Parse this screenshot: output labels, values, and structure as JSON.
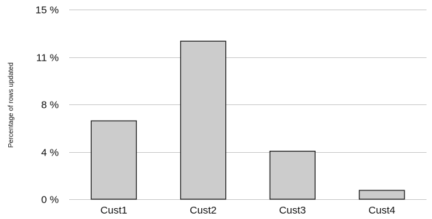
{
  "chart_data": {
    "type": "bar",
    "title": "",
    "xlabel": "",
    "ylabel": "Percentage of rows updated",
    "categories": [
      "Cust1",
      "Cust2",
      "Cust3",
      "Cust4"
    ],
    "values": [
      6.2,
      12.5,
      3.8,
      0.7
    ],
    "ylim": [
      0,
      15
    ],
    "y_ticks": [
      0,
      3.75,
      7.5,
      11.25,
      15
    ],
    "y_tick_labels": [
      "0 %",
      "4 %",
      "8 %",
      "11 %",
      "15 %"
    ],
    "grid": true,
    "legend": "none",
    "bar_color": "#cccccc",
    "bar_edge_color": "#111111",
    "grid_color": "#c8c8c8"
  }
}
